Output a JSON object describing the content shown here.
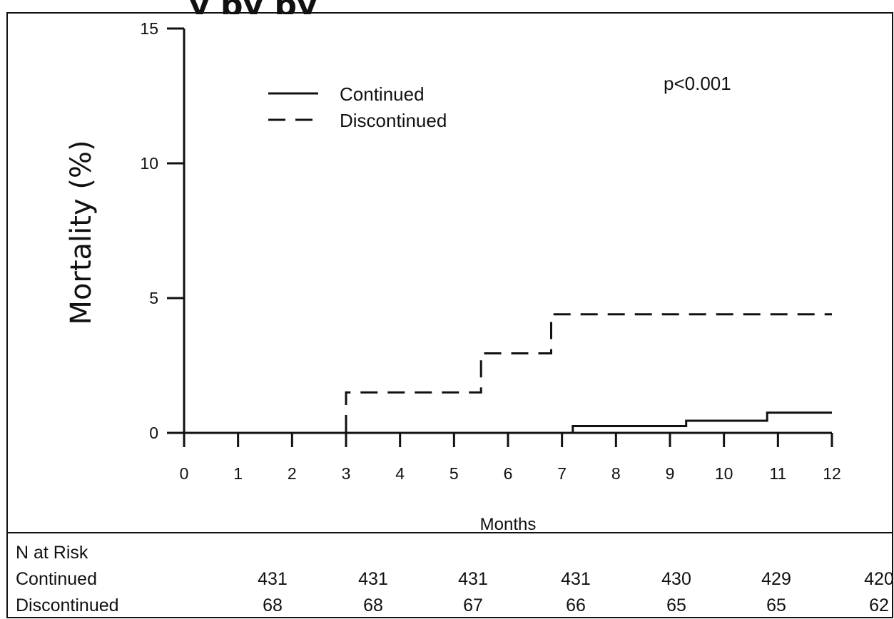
{
  "chart_data": {
    "type": "line",
    "subtype": "kaplan-meier-step",
    "title": "",
    "xlabel": "Months",
    "ylabel": "Mortality (%)",
    "xlim": [
      0,
      12
    ],
    "ylim": [
      0,
      15
    ],
    "x_ticks": [
      0,
      1,
      2,
      3,
      4,
      5,
      6,
      7,
      8,
      9,
      10,
      11,
      12
    ],
    "y_ticks": [
      0,
      5,
      10,
      15
    ],
    "grid": false,
    "legend_position": "top-left",
    "annotation": "p<0.001",
    "series": [
      {
        "name": "Continued",
        "style": "solid",
        "x": [
          0,
          7.2,
          7.2,
          9.3,
          9.3,
          10.8,
          10.8,
          12
        ],
        "y": [
          0,
          0,
          0.25,
          0.25,
          0.45,
          0.45,
          0.75,
          0.75
        ]
      },
      {
        "name": "Discontinued",
        "style": "dashed",
        "x": [
          0,
          3,
          3,
          5.5,
          5.5,
          6.8,
          6.8,
          12
        ],
        "y": [
          0,
          0,
          1.5,
          1.5,
          2.95,
          2.95,
          4.4,
          4.4
        ]
      }
    ],
    "risk_table": {
      "header": "N at Risk",
      "rows": [
        {
          "label": "Continued",
          "values": [
            "431",
            "431",
            "431",
            "431",
            "430",
            "429",
            "420"
          ]
        },
        {
          "label": "Discontinued",
          "values": [
            "68",
            "68",
            "67",
            "66",
            "65",
            "65",
            "62"
          ]
        }
      ]
    }
  }
}
